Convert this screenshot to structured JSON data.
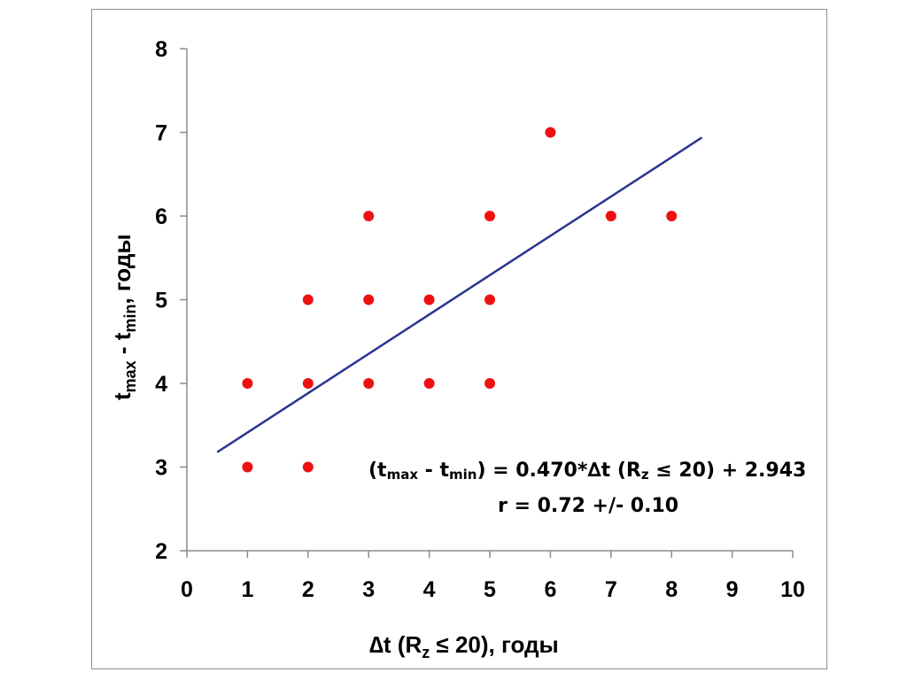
{
  "chart_data": {
    "type": "scatter",
    "xlabel": {
      "delta": "∆",
      "t": "t (R",
      "sub": "z",
      "rest": " ≤ 20),  годы"
    },
    "ylabel": {
      "t1": "t",
      "sub1": "max",
      "mid": " - t",
      "sub2": "min",
      "rest": ", годы"
    },
    "xlim": [
      0,
      10
    ],
    "ylim": [
      2,
      8
    ],
    "xticks": [
      0,
      1,
      2,
      3,
      4,
      5,
      6,
      7,
      8,
      9,
      10
    ],
    "yticks": [
      2,
      3,
      4,
      5,
      6,
      7,
      8
    ],
    "grid": false,
    "point_color": "#ee1111",
    "line_color": "#2b3590",
    "points": [
      {
        "x": 1,
        "y": 3
      },
      {
        "x": 1,
        "y": 4
      },
      {
        "x": 2,
        "y": 3
      },
      {
        "x": 2,
        "y": 4
      },
      {
        "x": 2,
        "y": 5
      },
      {
        "x": 3,
        "y": 4
      },
      {
        "x": 3,
        "y": 5
      },
      {
        "x": 3,
        "y": 6
      },
      {
        "x": 4,
        "y": 4
      },
      {
        "x": 4,
        "y": 5
      },
      {
        "x": 5,
        "y": 4
      },
      {
        "x": 5,
        "y": 5
      },
      {
        "x": 5,
        "y": 6
      },
      {
        "x": 6,
        "y": 7
      },
      {
        "x": 7,
        "y": 6
      },
      {
        "x": 8,
        "y": 6
      }
    ],
    "fit_line": {
      "slope": 0.47,
      "intercept": 2.943,
      "x_range": [
        0.5,
        8.5
      ]
    },
    "annotation": {
      "line1": {
        "p1": "(t",
        "s1": "max",
        "p2": " - t",
        "s2": "min",
        "p3": ") = 0.470*∆t (R",
        "s3": "z",
        "p4": " ≤ 20) + 2.943"
      },
      "line2": "r = 0.72 +/-  0.10"
    }
  }
}
